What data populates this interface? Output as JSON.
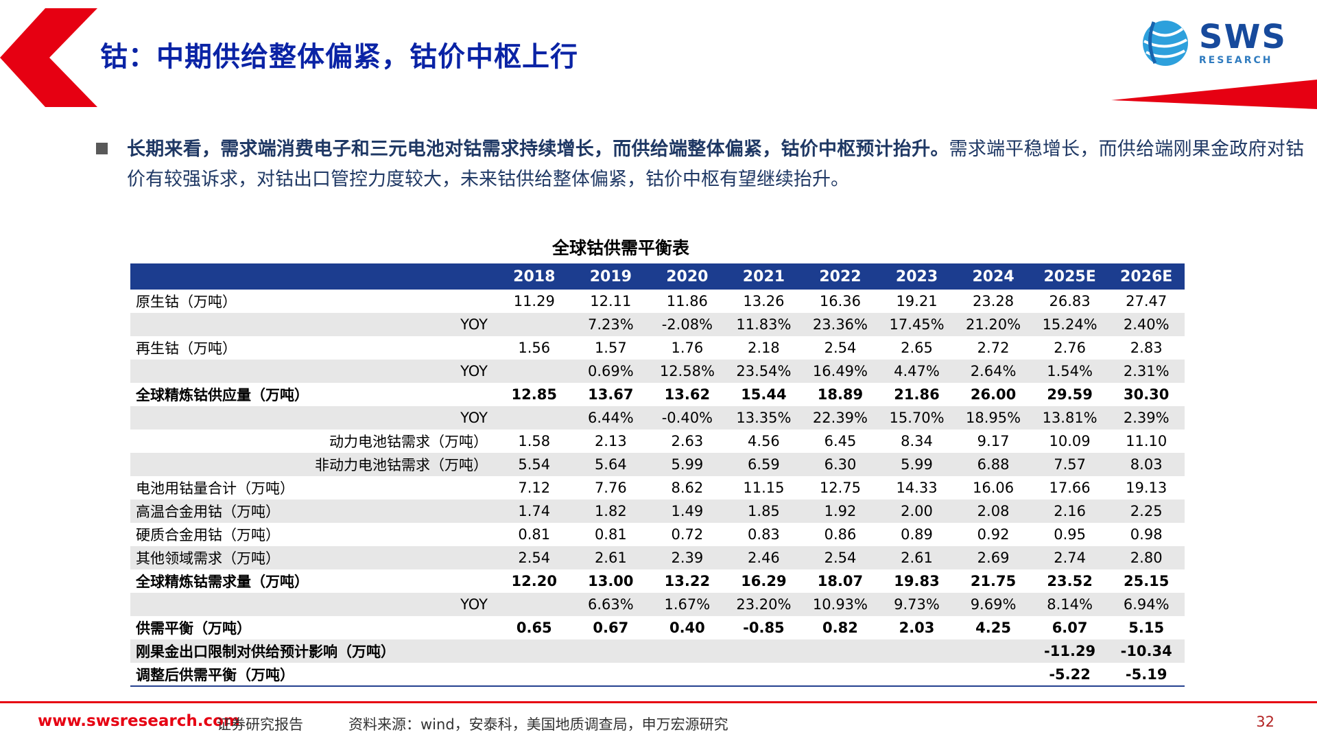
{
  "header": {
    "title": "钴：中期供给整体偏紧，钴价中枢上行",
    "logo_text": "SWS",
    "logo_sub": "RESEARCH"
  },
  "bullet": {
    "bold": "长期来看，需求端消费电子和三元电池对钴需求持续增长，而供给端整体偏紧，钴价中枢预计抬升。",
    "normal": "需求端平稳增长，而供给端刚果金政府对钴价有较强诉求，对钴出口管控力度较大，未来钴供给整体偏紧，钴价中枢有望继续抬升。"
  },
  "chart_data": {
    "type": "table",
    "title": "全球钴供需平衡表",
    "columns": [
      "",
      "2018",
      "2019",
      "2020",
      "2021",
      "2022",
      "2023",
      "2024",
      "2025E",
      "2026E"
    ],
    "rows": [
      {
        "label": "原生钴（万吨）",
        "align": "left",
        "bold": false,
        "values": [
          "11.29",
          "12.11",
          "11.86",
          "13.26",
          "16.36",
          "19.21",
          "23.28",
          "26.83",
          "27.47"
        ]
      },
      {
        "label": "YOY",
        "align": "right",
        "bold": false,
        "values": [
          "",
          "7.23%",
          "-2.08%",
          "11.83%",
          "23.36%",
          "17.45%",
          "21.20%",
          "15.24%",
          "2.40%"
        ]
      },
      {
        "label": "再生钴（万吨）",
        "align": "left",
        "bold": false,
        "values": [
          "1.56",
          "1.57",
          "1.76",
          "2.18",
          "2.54",
          "2.65",
          "2.72",
          "2.76",
          "2.83"
        ]
      },
      {
        "label": "YOY",
        "align": "right",
        "bold": false,
        "values": [
          "",
          "0.69%",
          "12.58%",
          "23.54%",
          "16.49%",
          "4.47%",
          "2.64%",
          "1.54%",
          "2.31%"
        ]
      },
      {
        "label": "全球精炼钴供应量（万吨）",
        "align": "left",
        "bold": true,
        "values": [
          "12.85",
          "13.67",
          "13.62",
          "15.44",
          "18.89",
          "21.86",
          "26.00",
          "29.59",
          "30.30"
        ]
      },
      {
        "label": "YOY",
        "align": "right",
        "bold": false,
        "values": [
          "",
          "6.44%",
          "-0.40%",
          "13.35%",
          "22.39%",
          "15.70%",
          "18.95%",
          "13.81%",
          "2.39%"
        ]
      },
      {
        "label": "动力电池钴需求（万吨）",
        "align": "right",
        "bold": false,
        "values": [
          "1.58",
          "2.13",
          "2.63",
          "4.56",
          "6.45",
          "8.34",
          "9.17",
          "10.09",
          "11.10"
        ]
      },
      {
        "label": "非动力电池钴需求（万吨）",
        "align": "right",
        "bold": false,
        "values": [
          "5.54",
          "5.64",
          "5.99",
          "6.59",
          "6.30",
          "5.99",
          "6.88",
          "7.57",
          "8.03"
        ]
      },
      {
        "label": "电池用钴量合计（万吨）",
        "align": "left",
        "bold": false,
        "values": [
          "7.12",
          "7.76",
          "8.62",
          "11.15",
          "12.75",
          "14.33",
          "16.06",
          "17.66",
          "19.13"
        ]
      },
      {
        "label": "高温合金用钴（万吨）",
        "align": "left",
        "bold": false,
        "values": [
          "1.74",
          "1.82",
          "1.49",
          "1.85",
          "1.92",
          "2.00",
          "2.08",
          "2.16",
          "2.25"
        ]
      },
      {
        "label": "硬质合金用钴（万吨）",
        "align": "left",
        "bold": false,
        "values": [
          "0.81",
          "0.81",
          "0.72",
          "0.83",
          "0.86",
          "0.89",
          "0.92",
          "0.95",
          "0.98"
        ]
      },
      {
        "label": "其他领域需求（万吨）",
        "align": "left",
        "bold": false,
        "values": [
          "2.54",
          "2.61",
          "2.39",
          "2.46",
          "2.54",
          "2.61",
          "2.69",
          "2.74",
          "2.80"
        ]
      },
      {
        "label": "全球精炼钴需求量（万吨）",
        "align": "left",
        "bold": true,
        "values": [
          "12.20",
          "13.00",
          "13.22",
          "16.29",
          "18.07",
          "19.83",
          "21.75",
          "23.52",
          "25.15"
        ]
      },
      {
        "label": "YOY",
        "align": "right",
        "bold": false,
        "values": [
          "",
          "6.63%",
          "1.67%",
          "23.20%",
          "10.93%",
          "9.73%",
          "9.69%",
          "8.14%",
          "6.94%"
        ]
      },
      {
        "label": "供需平衡（万吨）",
        "align": "left",
        "bold": true,
        "values": [
          "0.65",
          "0.67",
          "0.40",
          "-0.85",
          "0.82",
          "2.03",
          "4.25",
          "6.07",
          "5.15"
        ]
      },
      {
        "label": "刚果金出口限制对供给预计影响（万吨）",
        "align": "left",
        "bold": true,
        "values": [
          "",
          "",
          "",
          "",
          "",
          "",
          "",
          "-11.29",
          "-10.34"
        ]
      },
      {
        "label": "调整后供需平衡（万吨）",
        "align": "left",
        "bold": true,
        "values": [
          "",
          "",
          "",
          "",
          "",
          "",
          "",
          "-5.22",
          "-5.19"
        ]
      }
    ]
  },
  "footer": {
    "website": "www.swsresearch.com",
    "report_type": "证券研究报告",
    "source": "资料来源：wind，安泰科，美国地质调查局，申万宏源研究",
    "page_number": "32"
  },
  "colors": {
    "brand_red": "#e60012",
    "table_header_blue": "#1c3d8f",
    "title_blue": "#0a23a5",
    "body_text_blue": "#1f3864",
    "stripe_gray": "#e7e7e7"
  }
}
